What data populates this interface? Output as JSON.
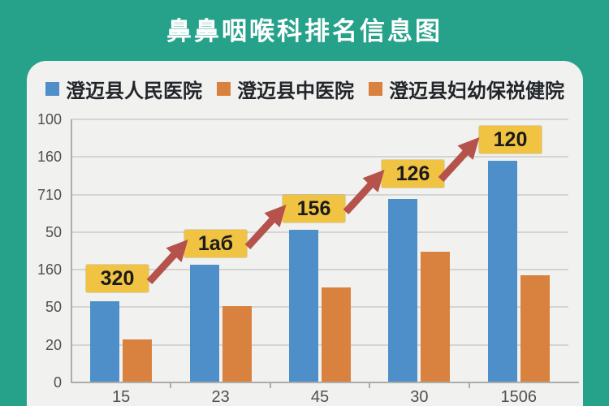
{
  "title": "鼻鼻咽喉科排名信息图",
  "colors": {
    "background": "#27a28a",
    "card": "#f1f1ef",
    "title_text": "#ffffff",
    "legend_text": "#22262a",
    "axis_text": "#505050",
    "grid": "#d4d4d2",
    "axis_line": "#acacaa",
    "annotation_bg": "#f0c343",
    "annotation_text": "#1a1a1a",
    "arrow": "#b5524b",
    "blue_series": "#4e8fca",
    "orange_series": "#d9823f"
  },
  "legend": {
    "items": [
      {
        "label": "澄迈县人民医院",
        "color": "#4e8fca"
      },
      {
        "label": "澄迈县中医院",
        "color": "#d9823f"
      },
      {
        "label": "澄迈县妇幼保祱健院",
        "color": "#d9823f"
      }
    ]
  },
  "chart_data": {
    "type": "bar",
    "title": "鼻鼻咽喉科排名信息图",
    "categories": [
      "15",
      "23",
      "45",
      "30",
      "1506"
    ],
    "series": [
      {
        "name": "澄迈县人民医院",
        "color": "#4e8fca",
        "values_pct_of_plot_height": [
          30.9,
          44.8,
          58.0,
          69.8,
          84.3
        ]
      },
      {
        "name": "澄迈县中医院",
        "color": "#d9823f",
        "values_pct_of_plot_height": [
          16.4,
          29.0,
          36.1,
          49.7,
          40.7
        ]
      }
    ],
    "y_tick_labels": [
      "100",
      "160",
      "710",
      "50",
      "160",
      "50",
      "20",
      "0"
    ],
    "annotations": [
      "320",
      "1аб",
      "156",
      "126",
      "120"
    ],
    "grid": "horizontal",
    "legend_position": "top",
    "trend_arrows": true
  }
}
